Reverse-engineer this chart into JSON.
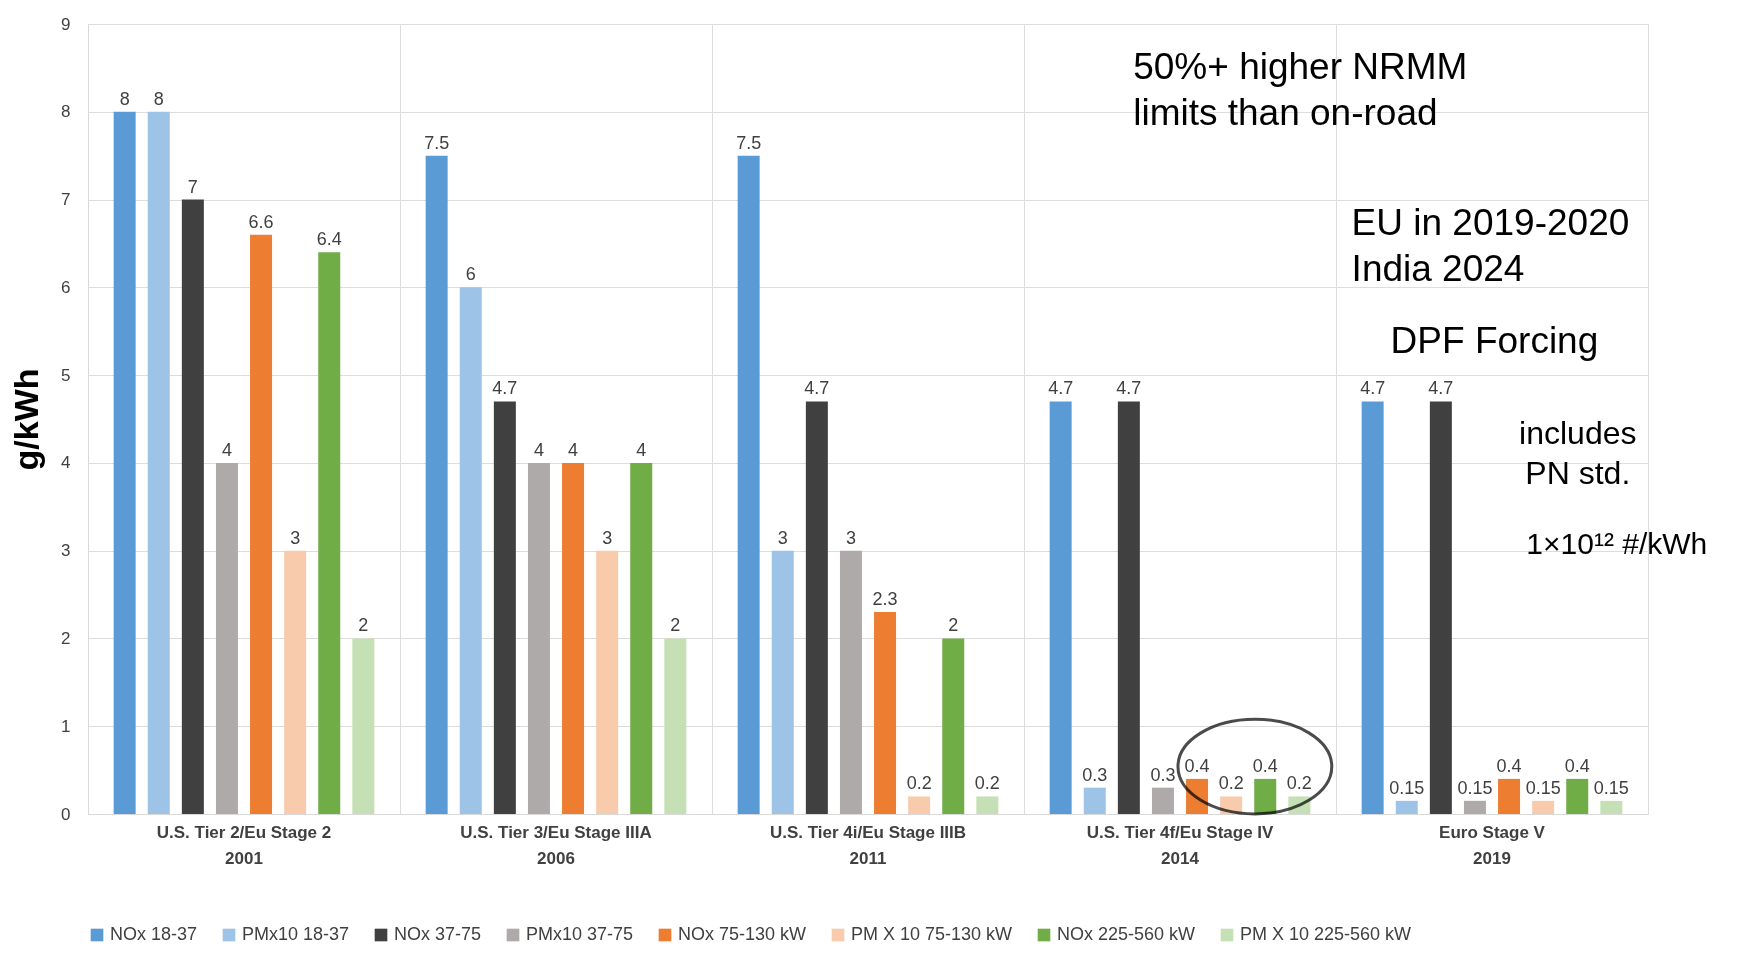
{
  "chart_data": {
    "type": "bar",
    "ylabel": "g/kWh",
    "categories": [
      "U.S. Tier 2/Eu Stage 2\n2001",
      "U.S. Tier 3/Eu Stage IIIA\n2006",
      "U.S. Tier 4i/Eu Stage IIIB\n2011",
      "U.S. Tier 4f/Eu Stage IV\n2014",
      "Euro Stage V\n2019"
    ],
    "series": [
      {
        "name": "NOx 18-37",
        "color": "#5b9bd5",
        "values": [
          8,
          7.5,
          7.5,
          4.7,
          4.7
        ]
      },
      {
        "name": "PMx10 18-37",
        "color": "#9dc3e6",
        "values": [
          8,
          6,
          3,
          0.3,
          0.15
        ]
      },
      {
        "name": "NOx 37-75",
        "color": "#404040",
        "values": [
          7,
          4.7,
          4.7,
          4.7,
          4.7
        ]
      },
      {
        "name": "PMx10 37-75",
        "color": "#aeaaaa",
        "values": [
          4,
          4,
          3,
          0.3,
          0.15
        ]
      },
      {
        "name": "NOx 75-130 kW",
        "color": "#ed7d31",
        "values": [
          6.6,
          4,
          2.3,
          0.4,
          0.4
        ]
      },
      {
        "name": "PM X 10 75-130 kW",
        "color": "#f8cbad",
        "values": [
          3,
          3,
          0.2,
          0.2,
          0.15
        ]
      },
      {
        "name": "NOx 225-560 kW",
        "color": "#70ad47",
        "values": [
          6.4,
          4,
          2,
          0.4,
          0.4
        ]
      },
      {
        "name": "PM X 10 225-560 kW",
        "color": "#c5e0b4",
        "values": [
          2,
          2,
          0.2,
          0.2,
          0.15
        ]
      }
    ],
    "ylim": [
      0,
      9
    ],
    "yticks": [
      0,
      1,
      2,
      3,
      4,
      5,
      6,
      7,
      8,
      9
    ],
    "grid": true,
    "legend": "bottom",
    "data_labels": true,
    "annotations": [
      "50%+ higher NRMM\nlimits than on-road",
      "EU in 2019-2020\nIndia 2024",
      "DPF Forcing",
      "includes\nPN std.",
      "1×10¹² #/kWh"
    ]
  }
}
